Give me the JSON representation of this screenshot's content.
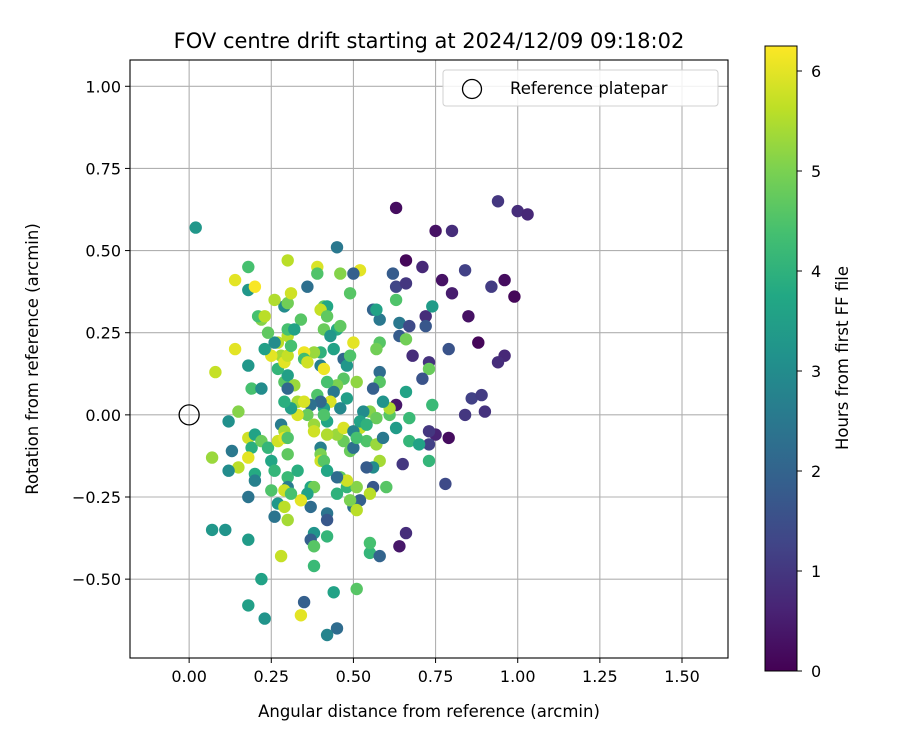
{
  "chart_data": {
    "type": "scatter",
    "title": "FOV centre drift starting at 2024/12/09 09:18:02",
    "xlabel": "Angular distance from reference (arcmin)",
    "ylabel": "Rotation from reference (arcmin)",
    "xlim": [
      -0.18,
      1.64
    ],
    "ylim": [
      -0.74,
      1.08
    ],
    "xticks": [
      0.0,
      0.25,
      0.5,
      0.75,
      1.0,
      1.25,
      1.5
    ],
    "xtick_labels": [
      "0.00",
      "0.25",
      "0.50",
      "0.75",
      "1.00",
      "1.25",
      "1.50"
    ],
    "yticks": [
      -0.5,
      -0.25,
      0.0,
      0.25,
      0.5,
      0.75,
      1.0
    ],
    "ytick_labels": [
      "−0.50",
      "−0.25",
      "0.00",
      "0.25",
      "0.50",
      "0.75",
      "1.00"
    ],
    "grid": true,
    "legend": {
      "position": "top-right",
      "label": "Reference platepar"
    },
    "reference_point": {
      "x": 0.0,
      "y": 0.0
    },
    "colorbar": {
      "label": "Hours from first FF file",
      "range": [
        0,
        6.25
      ],
      "ticks": [
        0,
        1,
        2,
        3,
        4,
        5,
        6
      ],
      "tick_labels": [
        "0",
        "1",
        "2",
        "3",
        "4",
        "5",
        "6"
      ],
      "colormap": "viridis"
    },
    "points": [
      {
        "x": 0.63,
        "y": 0.63,
        "h": 0.2
      },
      {
        "x": 0.66,
        "y": 0.47,
        "h": 0.1
      },
      {
        "x": 0.75,
        "y": 0.56,
        "h": 0.3
      },
      {
        "x": 0.8,
        "y": 0.56,
        "h": 0.8
      },
      {
        "x": 0.94,
        "y": 0.65,
        "h": 1.0
      },
      {
        "x": 1.0,
        "y": 0.62,
        "h": 0.8
      },
      {
        "x": 1.03,
        "y": 0.61,
        "h": 0.7
      },
      {
        "x": 0.71,
        "y": 0.45,
        "h": 0.7
      },
      {
        "x": 0.77,
        "y": 0.41,
        "h": 0.3
      },
      {
        "x": 0.84,
        "y": 0.44,
        "h": 1.2
      },
      {
        "x": 0.92,
        "y": 0.39,
        "h": 1.1
      },
      {
        "x": 0.96,
        "y": 0.41,
        "h": 0.2
      },
      {
        "x": 0.99,
        "y": 0.36,
        "h": 0.1
      },
      {
        "x": 0.8,
        "y": 0.37,
        "h": 0.5
      },
      {
        "x": 0.85,
        "y": 0.3,
        "h": 0.3
      },
      {
        "x": 0.72,
        "y": 0.3,
        "h": 0.8
      },
      {
        "x": 0.88,
        "y": 0.22,
        "h": 0.1
      },
      {
        "x": 0.96,
        "y": 0.18,
        "h": 0.7
      },
      {
        "x": 0.94,
        "y": 0.16,
        "h": 0.8
      },
      {
        "x": 0.79,
        "y": 0.2,
        "h": 1.6
      },
      {
        "x": 0.68,
        "y": 0.18,
        "h": 0.8
      },
      {
        "x": 0.73,
        "y": 0.16,
        "h": 0.9
      },
      {
        "x": 0.86,
        "y": 0.05,
        "h": 1.2
      },
      {
        "x": 0.89,
        "y": 0.06,
        "h": 1.1
      },
      {
        "x": 0.9,
        "y": 0.01,
        "h": 0.9
      },
      {
        "x": 0.84,
        "y": 0.0,
        "h": 1.0
      },
      {
        "x": 0.79,
        "y": -0.07,
        "h": 0.2
      },
      {
        "x": 0.75,
        "y": -0.06,
        "h": 0.6
      },
      {
        "x": 0.73,
        "y": -0.09,
        "h": 1.2
      },
      {
        "x": 0.78,
        "y": -0.21,
        "h": 1.4
      },
      {
        "x": 0.65,
        "y": -0.15,
        "h": 1.0
      },
      {
        "x": 0.64,
        "y": -0.4,
        "h": 0.4
      },
      {
        "x": 0.66,
        "y": -0.36,
        "h": 0.8
      },
      {
        "x": 0.62,
        "y": 0.43,
        "h": 1.8
      },
      {
        "x": 0.63,
        "y": 0.39,
        "h": 1.3
      },
      {
        "x": 0.66,
        "y": 0.4,
        "h": 1.0
      },
      {
        "x": 0.63,
        "y": 0.35,
        "h": 4.5
      },
      {
        "x": 0.64,
        "y": 0.28,
        "h": 2.5
      },
      {
        "x": 0.67,
        "y": 0.27,
        "h": 1.4
      },
      {
        "x": 0.64,
        "y": 0.24,
        "h": 1.8
      },
      {
        "x": 0.66,
        "y": 0.23,
        "h": 4.9
      },
      {
        "x": 0.72,
        "y": 0.27,
        "h": 1.7
      },
      {
        "x": 0.74,
        "y": 0.33,
        "h": 3.4
      },
      {
        "x": 0.73,
        "y": 0.14,
        "h": 4.8
      },
      {
        "x": 0.71,
        "y": 0.11,
        "h": 1.6
      },
      {
        "x": 0.66,
        "y": 0.07,
        "h": 3.6
      },
      {
        "x": 0.67,
        "y": -0.01,
        "h": 4.2
      },
      {
        "x": 0.74,
        "y": 0.03,
        "h": 4.2
      },
      {
        "x": 0.73,
        "y": -0.05,
        "h": 1.0
      },
      {
        "x": 0.67,
        "y": -0.08,
        "h": 4.1
      },
      {
        "x": 0.73,
        "y": -0.14,
        "h": 4.1
      },
      {
        "x": 0.7,
        "y": -0.09,
        "h": 3.6
      },
      {
        "x": 0.63,
        "y": -0.04,
        "h": 3.4
      },
      {
        "x": 0.63,
        "y": 0.03,
        "h": 0.4
      },
      {
        "x": 0.61,
        "y": 0.0,
        "h": 4.6
      },
      {
        "x": 0.61,
        "y": 0.02,
        "h": 5.5
      },
      {
        "x": 0.58,
        "y": 0.29,
        "h": 2.5
      },
      {
        "x": 0.58,
        "y": 0.22,
        "h": 4.6
      },
      {
        "x": 0.57,
        "y": 0.2,
        "h": 4.9
      },
      {
        "x": 0.56,
        "y": 0.32,
        "h": 2.0
      },
      {
        "x": 0.57,
        "y": 0.32,
        "h": 3.6
      },
      {
        "x": 0.58,
        "y": 0.13,
        "h": 2.2
      },
      {
        "x": 0.58,
        "y": 0.1,
        "h": 4.6
      },
      {
        "x": 0.56,
        "y": 0.08,
        "h": 1.9
      },
      {
        "x": 0.59,
        "y": 0.04,
        "h": 3.2
      },
      {
        "x": 0.55,
        "y": 0.01,
        "h": 5.1
      },
      {
        "x": 0.57,
        "y": -0.01,
        "h": 4.8
      },
      {
        "x": 0.53,
        "y": 0.01,
        "h": 3.0
      },
      {
        "x": 0.52,
        "y": -0.04,
        "h": 5.7
      },
      {
        "x": 0.54,
        "y": -0.08,
        "h": 4.5
      },
      {
        "x": 0.57,
        "y": -0.09,
        "h": 5.3
      },
      {
        "x": 0.59,
        "y": -0.07,
        "h": 2.5
      },
      {
        "x": 0.58,
        "y": -0.14,
        "h": 5.4
      },
      {
        "x": 0.56,
        "y": -0.16,
        "h": 3.0
      },
      {
        "x": 0.54,
        "y": -0.16,
        "h": 1.8
      },
      {
        "x": 0.56,
        "y": -0.22,
        "h": 1.7
      },
      {
        "x": 0.6,
        "y": -0.22,
        "h": 4.6
      },
      {
        "x": 0.55,
        "y": -0.24,
        "h": 5.6
      },
      {
        "x": 0.52,
        "y": -0.26,
        "h": 1.9
      },
      {
        "x": 0.5,
        "y": -0.28,
        "h": 2.3
      },
      {
        "x": 0.48,
        "y": -0.22,
        "h": 4.1
      },
      {
        "x": 0.51,
        "y": -0.22,
        "h": 5.1
      },
      {
        "x": 0.46,
        "y": -0.19,
        "h": 4.7
      },
      {
        "x": 0.48,
        "y": -0.2,
        "h": 5.8
      },
      {
        "x": 0.45,
        "y": -0.24,
        "h": 4.0
      },
      {
        "x": 0.45,
        "y": -0.19,
        "h": 2.2
      },
      {
        "x": 0.49,
        "y": -0.11,
        "h": 4.8
      },
      {
        "x": 0.47,
        "y": -0.08,
        "h": 4.8
      },
      {
        "x": 0.45,
        "y": -0.06,
        "h": 5.3
      },
      {
        "x": 0.47,
        "y": -0.04,
        "h": 5.9
      },
      {
        "x": 0.5,
        "y": -0.05,
        "h": 2.8
      },
      {
        "x": 0.5,
        "y": -0.1,
        "h": 2.3
      },
      {
        "x": 0.51,
        "y": -0.07,
        "h": 4.4
      },
      {
        "x": 0.52,
        "y": -0.02,
        "h": 3.6
      },
      {
        "x": 0.54,
        "y": -0.03,
        "h": 4.0
      },
      {
        "x": 0.42,
        "y": -0.06,
        "h": 5.5
      },
      {
        "x": 0.42,
        "y": -0.02,
        "h": 3.7
      },
      {
        "x": 0.4,
        "y": -0.1,
        "h": 2.7
      },
      {
        "x": 0.4,
        "y": -0.12,
        "h": 5.0
      },
      {
        "x": 0.4,
        "y": -0.14,
        "h": 5.8
      },
      {
        "x": 0.41,
        "y": -0.14,
        "h": 4.6
      },
      {
        "x": 0.42,
        "y": -0.17,
        "h": 3.7
      },
      {
        "x": 0.37,
        "y": -0.22,
        "h": 3.7
      },
      {
        "x": 0.38,
        "y": -0.22,
        "h": 4.9
      },
      {
        "x": 0.37,
        "y": -0.28,
        "h": 2.2
      },
      {
        "x": 0.36,
        "y": -0.24,
        "h": 3.6
      },
      {
        "x": 0.34,
        "y": -0.26,
        "h": 6.0
      },
      {
        "x": 0.42,
        "y": -0.3,
        "h": 2.4
      },
      {
        "x": 0.42,
        "y": -0.32,
        "h": 1.7
      },
      {
        "x": 0.49,
        "y": -0.26,
        "h": 5.0
      },
      {
        "x": 0.51,
        "y": -0.29,
        "h": 5.6
      },
      {
        "x": 0.38,
        "y": -0.36,
        "h": 3.2
      },
      {
        "x": 0.37,
        "y": -0.38,
        "h": 1.9
      },
      {
        "x": 0.38,
        "y": -0.4,
        "h": 4.6
      },
      {
        "x": 0.38,
        "y": -0.46,
        "h": 4.2
      },
      {
        "x": 0.42,
        "y": -0.37,
        "h": 4.1
      },
      {
        "x": 0.44,
        "y": -0.54,
        "h": 3.6
      },
      {
        "x": 0.51,
        "y": -0.53,
        "h": 4.6
      },
      {
        "x": 0.55,
        "y": -0.42,
        "h": 4.1
      },
      {
        "x": 0.58,
        "y": -0.43,
        "h": 2.0
      },
      {
        "x": 0.35,
        "y": -0.57,
        "h": 1.9
      },
      {
        "x": 0.34,
        "y": -0.61,
        "h": 6.0
      },
      {
        "x": 0.45,
        "y": -0.65,
        "h": 2.2
      },
      {
        "x": 0.42,
        "y": -0.67,
        "h": 2.8
      },
      {
        "x": 0.55,
        "y": -0.39,
        "h": 4.4
      },
      {
        "x": 0.36,
        "y": 0.39,
        "h": 2.3
      },
      {
        "x": 0.39,
        "y": 0.45,
        "h": 5.9
      },
      {
        "x": 0.39,
        "y": 0.43,
        "h": 4.5
      },
      {
        "x": 0.45,
        "y": 0.51,
        "h": 2.5
      },
      {
        "x": 0.46,
        "y": 0.43,
        "h": 5.1
      },
      {
        "x": 0.52,
        "y": 0.44,
        "h": 6.0
      },
      {
        "x": 0.5,
        "y": 0.43,
        "h": 1.9
      },
      {
        "x": 0.49,
        "y": 0.37,
        "h": 4.6
      },
      {
        "x": 0.41,
        "y": 0.33,
        "h": 4.7
      },
      {
        "x": 0.42,
        "y": 0.33,
        "h": 3.7
      },
      {
        "x": 0.4,
        "y": 0.32,
        "h": 5.7
      },
      {
        "x": 0.42,
        "y": 0.3,
        "h": 4.7
      },
      {
        "x": 0.41,
        "y": 0.26,
        "h": 4.8
      },
      {
        "x": 0.45,
        "y": 0.26,
        "h": 3.8
      },
      {
        "x": 0.46,
        "y": 0.27,
        "h": 4.7
      },
      {
        "x": 0.43,
        "y": 0.24,
        "h": 3.3
      },
      {
        "x": 0.44,
        "y": 0.2,
        "h": 3.6
      },
      {
        "x": 0.4,
        "y": 0.19,
        "h": 4.0
      },
      {
        "x": 0.38,
        "y": 0.19,
        "h": 5.3
      },
      {
        "x": 0.35,
        "y": 0.19,
        "h": 6.1
      },
      {
        "x": 0.35,
        "y": 0.17,
        "h": 4.3
      },
      {
        "x": 0.36,
        "y": 0.16,
        "h": 5.8
      },
      {
        "x": 0.4,
        "y": 0.15,
        "h": 2.7
      },
      {
        "x": 0.41,
        "y": 0.14,
        "h": 6.1
      },
      {
        "x": 0.47,
        "y": 0.17,
        "h": 2.1
      },
      {
        "x": 0.48,
        "y": 0.15,
        "h": 3.3
      },
      {
        "x": 0.49,
        "y": 0.18,
        "h": 4.5
      },
      {
        "x": 0.5,
        "y": 0.22,
        "h": 6.0
      },
      {
        "x": 0.47,
        "y": 0.11,
        "h": 4.6
      },
      {
        "x": 0.45,
        "y": 0.09,
        "h": 5.0
      },
      {
        "x": 0.48,
        "y": 0.05,
        "h": 3.5
      },
      {
        "x": 0.51,
        "y": 0.1,
        "h": 5.2
      },
      {
        "x": 0.44,
        "y": 0.07,
        "h": 2.5
      },
      {
        "x": 0.43,
        "y": 0.04,
        "h": 5.9
      },
      {
        "x": 0.41,
        "y": 0.02,
        "h": 3.5
      },
      {
        "x": 0.39,
        "y": 0.06,
        "h": 4.5
      },
      {
        "x": 0.4,
        "y": 0.04,
        "h": 2.1
      },
      {
        "x": 0.37,
        "y": 0.03,
        "h": 2.3
      },
      {
        "x": 0.36,
        "y": 0.0,
        "h": 4.8
      },
      {
        "x": 0.38,
        "y": -0.03,
        "h": 5.3
      },
      {
        "x": 0.38,
        "y": -0.05,
        "h": 5.8
      },
      {
        "x": 0.41,
        "y": 0.0,
        "h": 4.5
      },
      {
        "x": 0.46,
        "y": 0.02,
        "h": 2.9
      },
      {
        "x": 0.42,
        "y": 0.1,
        "h": 4.4
      },
      {
        "x": 0.33,
        "y": 0.04,
        "h": 5.4
      },
      {
        "x": 0.35,
        "y": 0.04,
        "h": 5.9
      },
      {
        "x": 0.33,
        "y": 0.0,
        "h": 5.9
      },
      {
        "x": 0.31,
        "y": 0.02,
        "h": 3.5
      },
      {
        "x": 0.29,
        "y": 0.04,
        "h": 3.9
      },
      {
        "x": 0.29,
        "y": 0.1,
        "h": 4.6
      },
      {
        "x": 0.3,
        "y": 0.12,
        "h": 3.5
      },
      {
        "x": 0.32,
        "y": 0.09,
        "h": 5.3
      },
      {
        "x": 0.3,
        "y": 0.08,
        "h": 2.1
      },
      {
        "x": 0.27,
        "y": 0.14,
        "h": 4.1
      },
      {
        "x": 0.28,
        "y": 0.18,
        "h": 5.4
      },
      {
        "x": 0.29,
        "y": 0.16,
        "h": 6.0
      },
      {
        "x": 0.3,
        "y": 0.18,
        "h": 5.7
      },
      {
        "x": 0.3,
        "y": 0.24,
        "h": 5.6
      },
      {
        "x": 0.31,
        "y": 0.21,
        "h": 4.4
      },
      {
        "x": 0.27,
        "y": 0.22,
        "h": 5.6
      },
      {
        "x": 0.25,
        "y": 0.18,
        "h": 6.0
      },
      {
        "x": 0.26,
        "y": 0.22,
        "h": 3.0
      },
      {
        "x": 0.24,
        "y": 0.25,
        "h": 4.7
      },
      {
        "x": 0.23,
        "y": 0.2,
        "h": 3.5
      },
      {
        "x": 0.22,
        "y": 0.29,
        "h": 5.1
      },
      {
        "x": 0.21,
        "y": 0.3,
        "h": 4.4
      },
      {
        "x": 0.23,
        "y": 0.3,
        "h": 5.6
      },
      {
        "x": 0.3,
        "y": 0.26,
        "h": 4.4
      },
      {
        "x": 0.29,
        "y": 0.33,
        "h": 3.0
      },
      {
        "x": 0.3,
        "y": 0.34,
        "h": 4.9
      },
      {
        "x": 0.31,
        "y": 0.37,
        "h": 5.8
      },
      {
        "x": 0.3,
        "y": 0.47,
        "h": 5.6
      },
      {
        "x": 0.34,
        "y": 0.29,
        "h": 4.6
      },
      {
        "x": 0.32,
        "y": 0.26,
        "h": 3.6
      },
      {
        "x": 0.26,
        "y": 0.35,
        "h": 5.5
      },
      {
        "x": 0.18,
        "y": 0.45,
        "h": 4.4
      },
      {
        "x": 0.18,
        "y": 0.38,
        "h": 3.3
      },
      {
        "x": 0.2,
        "y": 0.39,
        "h": 6.2
      },
      {
        "x": 0.14,
        "y": 0.41,
        "h": 6.0
      },
      {
        "x": 0.14,
        "y": 0.2,
        "h": 6.0
      },
      {
        "x": 0.18,
        "y": 0.15,
        "h": 3.3
      },
      {
        "x": 0.19,
        "y": 0.08,
        "h": 4.4
      },
      {
        "x": 0.22,
        "y": 0.08,
        "h": 3.0
      },
      {
        "x": 0.08,
        "y": 0.13,
        "h": 5.7
      },
      {
        "x": 0.15,
        "y": 0.01,
        "h": 5.1
      },
      {
        "x": 0.12,
        "y": -0.02,
        "h": 3.1
      },
      {
        "x": 0.13,
        "y": -0.11,
        "h": 2.5
      },
      {
        "x": 0.18,
        "y": -0.07,
        "h": 5.8
      },
      {
        "x": 0.2,
        "y": -0.06,
        "h": 3.6
      },
      {
        "x": 0.19,
        "y": -0.1,
        "h": 3.9
      },
      {
        "x": 0.22,
        "y": -0.08,
        "h": 4.8
      },
      {
        "x": 0.18,
        "y": -0.13,
        "h": 6.0
      },
      {
        "x": 0.2,
        "y": -0.18,
        "h": 3.8
      },
      {
        "x": 0.2,
        "y": -0.2,
        "h": 2.7
      },
      {
        "x": 0.15,
        "y": -0.16,
        "h": 5.6
      },
      {
        "x": 0.12,
        "y": -0.17,
        "h": 3.0
      },
      {
        "x": 0.07,
        "y": -0.13,
        "h": 5.3
      },
      {
        "x": 0.18,
        "y": -0.25,
        "h": 2.4
      },
      {
        "x": 0.25,
        "y": -0.14,
        "h": 3.7
      },
      {
        "x": 0.24,
        "y": -0.1,
        "h": 4.1
      },
      {
        "x": 0.28,
        "y": -0.03,
        "h": 2.6
      },
      {
        "x": 0.29,
        "y": -0.05,
        "h": 5.4
      },
      {
        "x": 0.27,
        "y": -0.08,
        "h": 5.8
      },
      {
        "x": 0.29,
        "y": -0.07,
        "h": 6.0
      },
      {
        "x": 0.3,
        "y": -0.07,
        "h": 4.5
      },
      {
        "x": 0.3,
        "y": -0.12,
        "h": 4.7
      },
      {
        "x": 0.3,
        "y": -0.19,
        "h": 4.2
      },
      {
        "x": 0.3,
        "y": -0.22,
        "h": 2.6
      },
      {
        "x": 0.29,
        "y": -0.23,
        "h": 5.8
      },
      {
        "x": 0.31,
        "y": -0.24,
        "h": 4.4
      },
      {
        "x": 0.25,
        "y": -0.23,
        "h": 4.5
      },
      {
        "x": 0.26,
        "y": -0.17,
        "h": 4.1
      },
      {
        "x": 0.33,
        "y": -0.17,
        "h": 3.9
      },
      {
        "x": 0.26,
        "y": -0.31,
        "h": 2.4
      },
      {
        "x": 0.27,
        "y": -0.27,
        "h": 3.3
      },
      {
        "x": 0.29,
        "y": -0.28,
        "h": 5.6
      },
      {
        "x": 0.3,
        "y": -0.32,
        "h": 5.4
      },
      {
        "x": 0.28,
        "y": -0.43,
        "h": 5.7
      },
      {
        "x": 0.18,
        "y": -0.38,
        "h": 3.4
      },
      {
        "x": 0.07,
        "y": -0.35,
        "h": 3.3
      },
      {
        "x": 0.11,
        "y": -0.35,
        "h": 3.2
      },
      {
        "x": 0.22,
        "y": -0.5,
        "h": 3.6
      },
      {
        "x": 0.18,
        "y": -0.58,
        "h": 3.5
      },
      {
        "x": 0.23,
        "y": -0.62,
        "h": 3.2
      },
      {
        "x": 0.02,
        "y": 0.57,
        "h": 3.3
      }
    ]
  }
}
